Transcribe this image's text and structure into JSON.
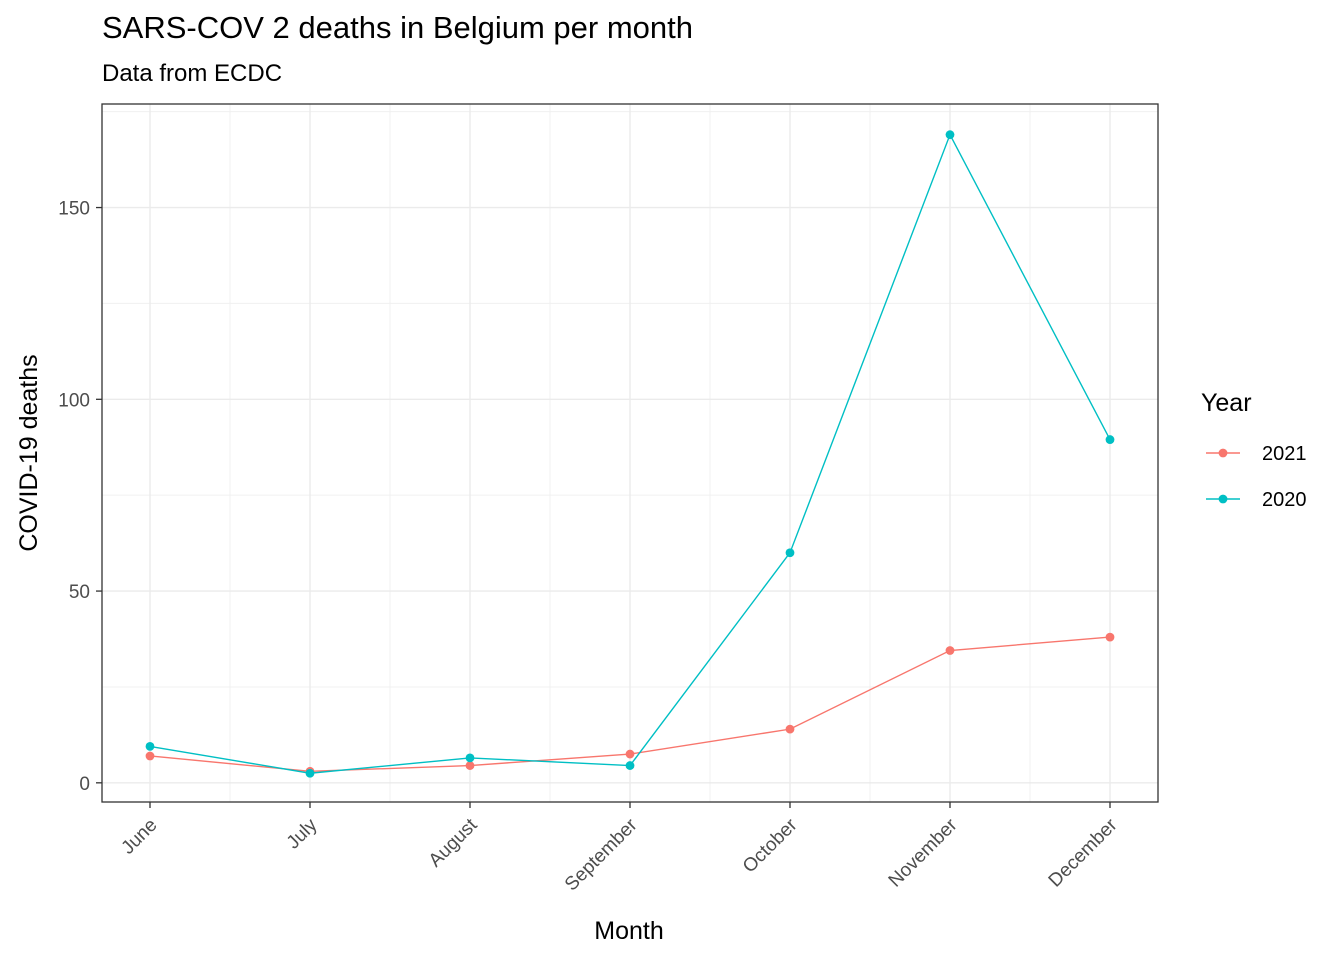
{
  "title": "SARS-COV 2 deaths in Belgium per month",
  "subtitle": "Data from ECDC",
  "chart_data": {
    "type": "line",
    "xlabel": "Month",
    "ylabel": "COVID-19 deaths",
    "categories": [
      "June",
      "July",
      "August",
      "September",
      "October",
      "November",
      "December"
    ],
    "ylim": [
      -5,
      177
    ],
    "yticks": [
      0,
      50,
      100,
      150
    ],
    "grid": true,
    "legend_title": "Year",
    "legend_position": "right",
    "series": [
      {
        "name": "2021",
        "color": "#F8766D",
        "values": [
          7,
          3,
          4.5,
          7.5,
          14,
          34.5,
          38
        ]
      },
      {
        "name": "2020",
        "color": "#00BFC4",
        "values": [
          9.5,
          2.5,
          6.5,
          4.5,
          60,
          169,
          89.5
        ]
      }
    ]
  }
}
